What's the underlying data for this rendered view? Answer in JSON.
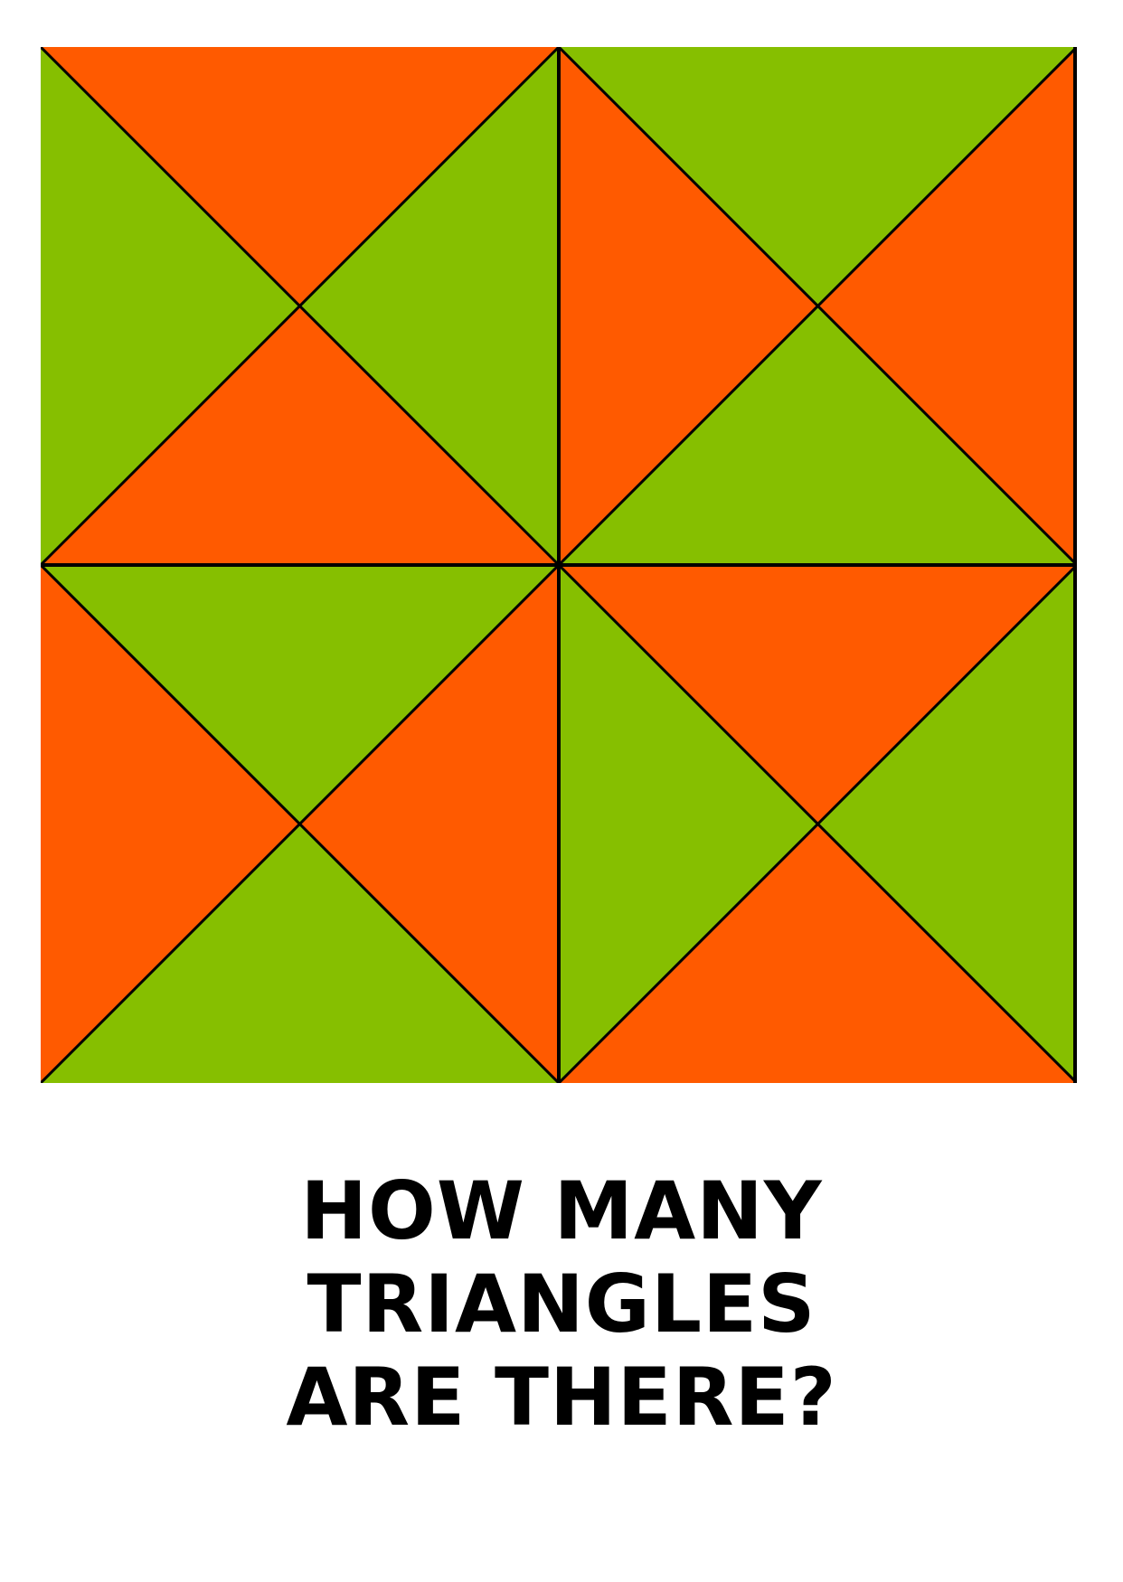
{
  "puzzle": {
    "colors": {
      "orange": "#ff5a00",
      "green": "#86bf00",
      "line": "#000000"
    },
    "grid": "2x2",
    "quadrants": [
      {
        "name": "top-left",
        "top": "orange",
        "right": "green",
        "bottom": "orange",
        "left": "green"
      },
      {
        "name": "top-right",
        "top": "green",
        "right": "orange",
        "bottom": "green",
        "left": "orange"
      },
      {
        "name": "bottom-left",
        "top": "green",
        "right": "orange",
        "bottom": "green",
        "left": "orange"
      },
      {
        "name": "bottom-right",
        "top": "orange",
        "right": "green",
        "bottom": "orange",
        "left": "green"
      }
    ]
  },
  "question": {
    "lines": [
      "HOW MANY",
      "TRIANGLES",
      "ARE THERE?"
    ]
  }
}
